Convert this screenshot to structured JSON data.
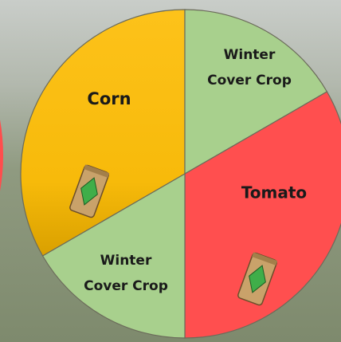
{
  "segments": [
    {
      "label": "Corn"
    },
    {
      "label": [
        "Winter",
        "Cover Crop"
      ]
    },
    {
      "label": "Tomato"
    },
    {
      "label": [
        "Winter",
        "Cover Crop"
      ]
    }
  ]
}
